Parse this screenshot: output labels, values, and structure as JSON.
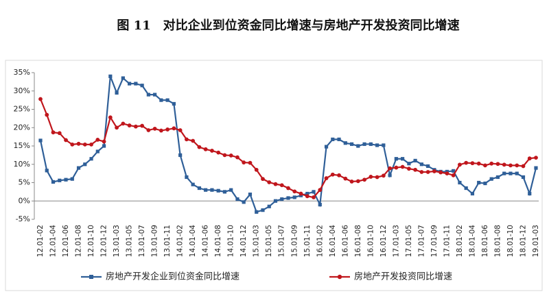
{
  "chart_data": {
    "type": "line",
    "title": "图 11　对比企业到位资金同比增速与房地产开发投资同比增速",
    "categories": [
      "12.01-02",
      null,
      "12.01-04",
      null,
      "12.01-06",
      null,
      "12.01-08",
      null,
      "12.01-10",
      null,
      "12.01-12",
      null,
      "13.01-03",
      null,
      "13.01-05",
      null,
      "13.01-07",
      null,
      "13.01-09",
      null,
      "13.01-11",
      null,
      "14.01-02",
      null,
      "14.01-04",
      null,
      "14.01-06",
      null,
      "14.01-08",
      null,
      "14.01-10",
      null,
      "14.01-12",
      null,
      "15.01-03",
      null,
      "15.01-05",
      null,
      "15.01-07",
      null,
      "15.01-09",
      null,
      "15.01-11",
      null,
      "16.01-02",
      null,
      "16.01-04",
      null,
      "16.01-06",
      null,
      "16.01-08",
      null,
      "16.01-10",
      null,
      "16.01-12",
      null,
      "17.01-03",
      null,
      "17.01-05",
      null,
      "17.01-07",
      null,
      "17.01-09",
      null,
      "17.01-11",
      null,
      "18.01-02",
      null,
      "18.01-04",
      null,
      "18.01-06",
      null,
      "18.01-08",
      null,
      "18.01-10",
      null,
      "18.01-12",
      null,
      "19.01-03"
    ],
    "series": [
      {
        "name": "房地产开发企业到位资金同比增速",
        "color": "#2f5f98",
        "marker": "square",
        "values": [
          16.5,
          8.3,
          5.2,
          5.6,
          5.8,
          6,
          9,
          10,
          11.5,
          13.5,
          15,
          34,
          29.5,
          33.5,
          32,
          32,
          31.5,
          29,
          29,
          27.5,
          27.5,
          26.5,
          12.5,
          6.5,
          4.5,
          3.5,
          3,
          3,
          2.8,
          2.5,
          3,
          0.5,
          -0.3,
          1.8,
          -3,
          -2.5,
          -1.5,
          0,
          0.5,
          0.8,
          1,
          1.5,
          2,
          2.5,
          -1,
          14.8,
          16.8,
          16.8,
          15.8,
          15.5,
          15,
          15.5,
          15.5,
          15.2,
          15.2,
          7,
          11.5,
          11.5,
          10.2,
          11,
          10,
          9.5,
          8.5,
          8,
          8,
          8.2,
          5,
          3.5,
          2,
          5,
          4.8,
          6,
          6.5,
          7.5,
          7.5,
          7.5,
          6.5,
          2,
          9
        ]
      },
      {
        "name": "房地产开发投资同比增速",
        "color": "#c0161c",
        "marker": "circle",
        "values": [
          27.8,
          23.5,
          18.7,
          18.5,
          16.6,
          15.4,
          15.6,
          15.4,
          15.4,
          16.7,
          16.2,
          22.8,
          20,
          21.1,
          20.6,
          20.3,
          20.5,
          19.3,
          19.7,
          19.2,
          19.5,
          19.8,
          19.3,
          16.8,
          16.4,
          14.7,
          14.1,
          13.7,
          13.2,
          12.5,
          12.4,
          11.9,
          10.5,
          10.4,
          8.5,
          6,
          5.1,
          4.6,
          4.3,
          3.5,
          2.6,
          2,
          1.3,
          1,
          3,
          6.2,
          7.2,
          7,
          6.1,
          5.3,
          5.4,
          5.8,
          6.6,
          6.5,
          6.9,
          8.9,
          9.1,
          9.3,
          8.8,
          8.5,
          7.9,
          7.9,
          8.1,
          7.8,
          7.5,
          7,
          9.9,
          10.4,
          10.3,
          10.2,
          9.7,
          10.2,
          10.1,
          9.9,
          9.7,
          9.7,
          9.5,
          11.6,
          11.8
        ]
      }
    ],
    "ylim": [
      -5,
      35
    ],
    "yticks": [
      {
        "value": -5,
        "label": "-5%"
      },
      {
        "value": 0,
        "label": "0%"
      },
      {
        "value": 5,
        "label": "5%"
      },
      {
        "value": 10,
        "label": "10%"
      },
      {
        "value": 15,
        "label": "15%"
      },
      {
        "value": 20,
        "label": "20%"
      },
      {
        "value": 25,
        "label": "25%"
      },
      {
        "value": 30,
        "label": "30%"
      },
      {
        "value": 35,
        "label": "35%"
      }
    ],
    "grid": false
  }
}
